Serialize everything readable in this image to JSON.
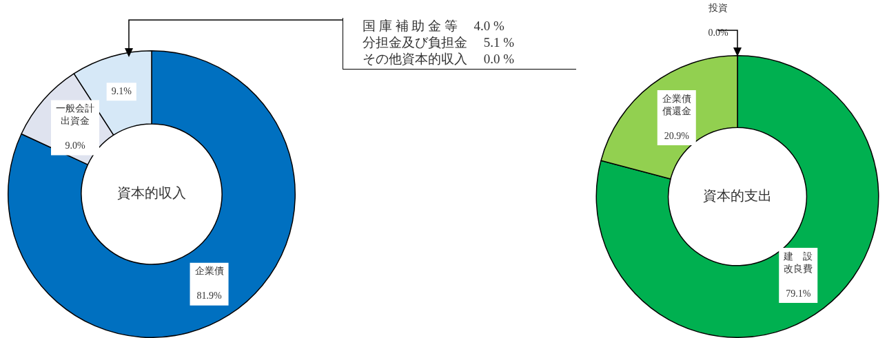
{
  "chart_data": [
    {
      "type": "donut",
      "title": "資本的収入",
      "categories": [
        "企業債",
        "一般会計出資金",
        null
      ],
      "values": [
        81.9,
        9.0,
        9.1
      ],
      "value_labels": [
        "81.9%",
        "9.0%",
        "9.1%"
      ],
      "colors": [
        "#0070c0",
        "#dfe3ef",
        "#d6e8f7"
      ],
      "legend": false,
      "annotations": [
        "国 庫 補 助 金 等　 4.0 %",
        "分担金及び負担金　 5.1 %",
        "その他資本的収入　 0.0 %"
      ]
    },
    {
      "type": "donut",
      "title": "資本的支出",
      "categories": [
        "投資",
        "建　設改良費",
        "企業債償還金"
      ],
      "values": [
        0.0,
        79.1,
        20.9
      ],
      "value_labels": [
        "0.0%",
        "79.1%",
        "20.9%"
      ],
      "colors": [
        "#ffffff",
        "#00b050",
        "#92d050"
      ],
      "legend": false
    }
  ]
}
